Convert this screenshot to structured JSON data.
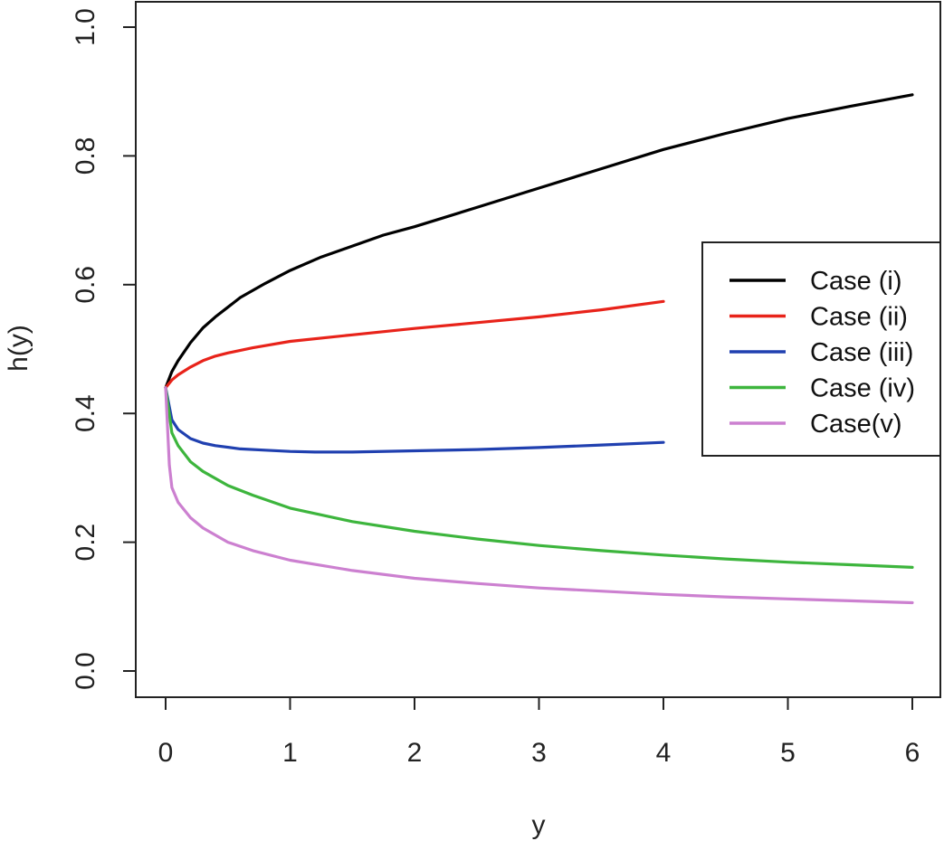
{
  "chart_data": {
    "type": "line",
    "title": "",
    "xlabel": "y",
    "ylabel": "h(y)",
    "xlim": [
      0,
      6
    ],
    "ylim": [
      0,
      1
    ],
    "x_ticks": [
      "0",
      "1",
      "2",
      "3",
      "4",
      "5",
      "6"
    ],
    "y_ticks": [
      "0.0",
      "0.2",
      "0.4",
      "0.6",
      "0.8",
      "1.0"
    ],
    "grid": false,
    "legend_position": "right",
    "series": [
      {
        "name": "Case (i)",
        "color": "#000000",
        "x": [
          0,
          0.05,
          0.1,
          0.2,
          0.3,
          0.4,
          0.5,
          0.6,
          0.8,
          1.0,
          1.25,
          1.5,
          1.75,
          2.0,
          2.5,
          3.0,
          3.5,
          4.0,
          4.5,
          5.0,
          5.5,
          6.0
        ],
        "y": [
          0.44,
          0.465,
          0.482,
          0.51,
          0.533,
          0.55,
          0.565,
          0.58,
          0.602,
          0.622,
          0.643,
          0.66,
          0.677,
          0.69,
          0.72,
          0.75,
          0.78,
          0.81,
          0.835,
          0.858,
          0.877,
          0.895
        ]
      },
      {
        "name": "Case (ii)",
        "color": "#e8231a",
        "x": [
          0,
          0.05,
          0.1,
          0.2,
          0.3,
          0.4,
          0.5,
          0.7,
          1.0,
          1.5,
          2.0,
          2.5,
          3.0,
          3.5,
          4.0
        ],
        "y": [
          0.44,
          0.452,
          0.46,
          0.472,
          0.482,
          0.489,
          0.494,
          0.502,
          0.512,
          0.522,
          0.532,
          0.541,
          0.55,
          0.561,
          0.574
        ]
      },
      {
        "name": "Case (iii)",
        "color": "#2040b0",
        "x": [
          0,
          0.05,
          0.1,
          0.2,
          0.3,
          0.4,
          0.6,
          0.8,
          1.0,
          1.2,
          1.5,
          2.0,
          2.5,
          3.0,
          3.5,
          4.0
        ],
        "y": [
          0.44,
          0.39,
          0.375,
          0.361,
          0.354,
          0.35,
          0.345,
          0.343,
          0.341,
          0.34,
          0.34,
          0.342,
          0.344,
          0.347,
          0.351,
          0.355
        ]
      },
      {
        "name": "Case (iv)",
        "color": "#3db53d",
        "x": [
          0,
          0.05,
          0.1,
          0.2,
          0.3,
          0.5,
          0.7,
          1.0,
          1.5,
          2.0,
          2.5,
          3.0,
          3.5,
          4.0,
          4.5,
          5.0,
          5.5,
          6.0
        ],
        "y": [
          0.44,
          0.37,
          0.35,
          0.325,
          0.31,
          0.288,
          0.273,
          0.253,
          0.232,
          0.217,
          0.205,
          0.195,
          0.187,
          0.18,
          0.174,
          0.169,
          0.165,
          0.161
        ]
      },
      {
        "name": "Case(v)",
        "color": "#cc80d0",
        "x": [
          0,
          0.03,
          0.05,
          0.1,
          0.2,
          0.3,
          0.5,
          0.7,
          1.0,
          1.5,
          2.0,
          2.5,
          3.0,
          3.5,
          4.0,
          4.5,
          5.0,
          5.5,
          6.0
        ],
        "y": [
          0.44,
          0.32,
          0.285,
          0.262,
          0.238,
          0.222,
          0.2,
          0.187,
          0.172,
          0.156,
          0.144,
          0.136,
          0.129,
          0.124,
          0.119,
          0.115,
          0.112,
          0.109,
          0.106
        ]
      }
    ]
  }
}
